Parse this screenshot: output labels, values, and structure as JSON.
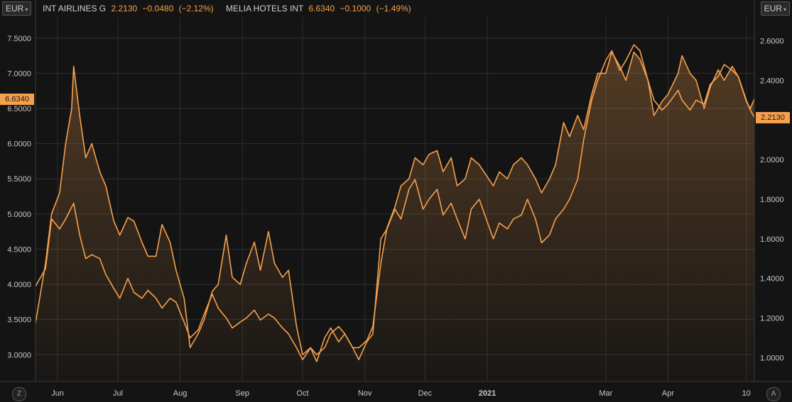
{
  "header": {
    "left_currency": "EUR",
    "right_currency": "EUR",
    "legend": [
      {
        "name": "INT AIRLINES G",
        "value": "2.2130",
        "change": "−0.0480",
        "pct": "(−2.12%)"
      },
      {
        "name": "MELIA HOTELS INT",
        "value": "6.6340",
        "change": "−0.1000",
        "pct": "(−1.49%)"
      }
    ]
  },
  "badges": {
    "left": "6.6340",
    "right": "2.2130"
  },
  "controls": {
    "left_corner": "Z",
    "right_corner": "A"
  },
  "colors": {
    "background": "#141414",
    "grid": "#2e2e2e",
    "line": "#f6a04d",
    "axis_text": "#c8c8c8"
  },
  "chart_data": {
    "type": "line",
    "x_axis": {
      "type": "date",
      "range": [
        "2020-05-21",
        "2021-05-14"
      ],
      "ticks": [
        {
          "date": "2020-06-01",
          "label": "Jun"
        },
        {
          "date": "2020-07-01",
          "label": "Jul"
        },
        {
          "date": "2020-08-01",
          "label": "Aug"
        },
        {
          "date": "2020-09-01",
          "label": "Sep"
        },
        {
          "date": "2020-10-01",
          "label": "Oct"
        },
        {
          "date": "2020-11-01",
          "label": "Nov"
        },
        {
          "date": "2020-12-01",
          "label": "Dec"
        },
        {
          "date": "2021-01-01",
          "label": "2021"
        },
        {
          "date": "2021-03-01",
          "label": "Mar"
        },
        {
          "date": "2021-04-01",
          "label": "Apr"
        },
        {
          "date": "2021-05-10",
          "label": "10"
        }
      ]
    },
    "y_left": {
      "ylim": [
        2.62,
        7.8
      ],
      "ticks": [
        "3.0000",
        "3.5000",
        "4.0000",
        "4.5000",
        "5.0000",
        "5.5000",
        "6.0000",
        "6.5000",
        "7.0000",
        "7.5000"
      ]
    },
    "y_right": {
      "ylim": [
        0.88,
        2.72
      ],
      "ticks": [
        "1.0000",
        "1.2000",
        "1.4000",
        "1.6000",
        "1.8000",
        "2.0000",
        "2.2000",
        "2.4000",
        "2.6000"
      ]
    },
    "grid": true,
    "series": [
      {
        "name": "MELIA HOTELS INT",
        "axis": "left",
        "filled": true,
        "points": [
          [
            "2020-05-21",
            3.45
          ],
          [
            "2020-05-26",
            4.3
          ],
          [
            "2020-05-29",
            5.0
          ],
          [
            "2020-06-02",
            5.3
          ],
          [
            "2020-06-05",
            6.0
          ],
          [
            "2020-06-08",
            6.5
          ],
          [
            "2020-06-09",
            7.1
          ],
          [
            "2020-06-12",
            6.4
          ],
          [
            "2020-06-15",
            5.8
          ],
          [
            "2020-06-18",
            6.0
          ],
          [
            "2020-06-22",
            5.6
          ],
          [
            "2020-06-25",
            5.4
          ],
          [
            "2020-06-29",
            4.9
          ],
          [
            "2020-07-02",
            4.7
          ],
          [
            "2020-07-06",
            4.95
          ],
          [
            "2020-07-09",
            4.9
          ],
          [
            "2020-07-13",
            4.6
          ],
          [
            "2020-07-16",
            4.4
          ],
          [
            "2020-07-20",
            4.4
          ],
          [
            "2020-07-23",
            4.85
          ],
          [
            "2020-07-27",
            4.6
          ],
          [
            "2020-07-30",
            4.2
          ],
          [
            "2020-08-03",
            3.8
          ],
          [
            "2020-08-06",
            3.1
          ],
          [
            "2020-08-10",
            3.3
          ],
          [
            "2020-08-13",
            3.5
          ],
          [
            "2020-08-17",
            3.9
          ],
          [
            "2020-08-20",
            4.0
          ],
          [
            "2020-08-24",
            4.7
          ],
          [
            "2020-08-27",
            4.1
          ],
          [
            "2020-08-31",
            4.0
          ],
          [
            "2020-09-03",
            4.3
          ],
          [
            "2020-09-07",
            4.6
          ],
          [
            "2020-09-10",
            4.2
          ],
          [
            "2020-09-14",
            4.75
          ],
          [
            "2020-09-17",
            4.3
          ],
          [
            "2020-09-21",
            4.1
          ],
          [
            "2020-09-24",
            4.2
          ],
          [
            "2020-09-28",
            3.4
          ],
          [
            "2020-10-01",
            3.0
          ],
          [
            "2020-10-05",
            3.1
          ],
          [
            "2020-10-08",
            3.0
          ],
          [
            "2020-10-12",
            3.1
          ],
          [
            "2020-10-15",
            3.3
          ],
          [
            "2020-10-19",
            3.4
          ],
          [
            "2020-10-22",
            3.3
          ],
          [
            "2020-10-26",
            3.1
          ],
          [
            "2020-10-29",
            3.1
          ],
          [
            "2020-11-02",
            3.2
          ],
          [
            "2020-11-05",
            3.4
          ],
          [
            "2020-11-09",
            4.3
          ],
          [
            "2020-11-12",
            4.8
          ],
          [
            "2020-11-16",
            5.1
          ],
          [
            "2020-11-19",
            5.4
          ],
          [
            "2020-11-23",
            5.5
          ],
          [
            "2020-11-26",
            5.8
          ],
          [
            "2020-11-30",
            5.7
          ],
          [
            "2020-12-03",
            5.85
          ],
          [
            "2020-12-07",
            5.9
          ],
          [
            "2020-12-10",
            5.6
          ],
          [
            "2020-12-14",
            5.8
          ],
          [
            "2020-12-17",
            5.4
          ],
          [
            "2020-12-21",
            5.5
          ],
          [
            "2020-12-24",
            5.8
          ],
          [
            "2020-12-28",
            5.7
          ],
          [
            "2021-01-04",
            5.4
          ],
          [
            "2021-01-07",
            5.6
          ],
          [
            "2021-01-11",
            5.5
          ],
          [
            "2021-01-14",
            5.7
          ],
          [
            "2021-01-18",
            5.8
          ],
          [
            "2021-01-21",
            5.7
          ],
          [
            "2021-01-25",
            5.5
          ],
          [
            "2021-01-28",
            5.3
          ],
          [
            "2021-02-01",
            5.5
          ],
          [
            "2021-02-04",
            5.7
          ],
          [
            "2021-02-08",
            6.3
          ],
          [
            "2021-02-11",
            6.1
          ],
          [
            "2021-02-15",
            6.4
          ],
          [
            "2021-02-18",
            6.2
          ],
          [
            "2021-02-22",
            6.7
          ],
          [
            "2021-02-25",
            7.0
          ],
          [
            "2021-03-01",
            7.0
          ],
          [
            "2021-03-04",
            7.3
          ],
          [
            "2021-03-08",
            7.1
          ],
          [
            "2021-03-11",
            6.9
          ],
          [
            "2021-03-15",
            7.3
          ],
          [
            "2021-03-18",
            7.2
          ],
          [
            "2021-03-22",
            6.9
          ],
          [
            "2021-03-25",
            6.4
          ],
          [
            "2021-03-29",
            6.6
          ],
          [
            "2021-04-01",
            6.7
          ],
          [
            "2021-04-06",
            7.0
          ],
          [
            "2021-04-08",
            7.25
          ],
          [
            "2021-04-12",
            7.0
          ],
          [
            "2021-04-15",
            6.9
          ],
          [
            "2021-04-19",
            6.5
          ],
          [
            "2021-04-22",
            6.8
          ],
          [
            "2021-04-26",
            7.05
          ],
          [
            "2021-04-29",
            6.9
          ],
          [
            "2021-05-03",
            7.1
          ],
          [
            "2021-05-06",
            6.95
          ],
          [
            "2021-05-10",
            6.6
          ],
          [
            "2021-05-12",
            6.5
          ],
          [
            "2021-05-14",
            6.634
          ]
        ]
      },
      {
        "name": "INT AIRLINES G",
        "axis": "right",
        "filled": false,
        "points": [
          [
            "2020-05-21",
            1.36
          ],
          [
            "2020-05-26",
            1.45
          ],
          [
            "2020-05-29",
            1.7
          ],
          [
            "2020-06-02",
            1.65
          ],
          [
            "2020-06-05",
            1.7
          ],
          [
            "2020-06-09",
            1.78
          ],
          [
            "2020-06-12",
            1.62
          ],
          [
            "2020-06-15",
            1.5
          ],
          [
            "2020-06-18",
            1.52
          ],
          [
            "2020-06-22",
            1.5
          ],
          [
            "2020-06-25",
            1.42
          ],
          [
            "2020-06-29",
            1.35
          ],
          [
            "2020-07-02",
            1.3
          ],
          [
            "2020-07-06",
            1.4
          ],
          [
            "2020-07-09",
            1.33
          ],
          [
            "2020-07-13",
            1.3
          ],
          [
            "2020-07-16",
            1.34
          ],
          [
            "2020-07-20",
            1.3
          ],
          [
            "2020-07-23",
            1.25
          ],
          [
            "2020-07-27",
            1.3
          ],
          [
            "2020-07-30",
            1.28
          ],
          [
            "2020-08-03",
            1.18
          ],
          [
            "2020-08-06",
            1.1
          ],
          [
            "2020-08-10",
            1.14
          ],
          [
            "2020-08-13",
            1.22
          ],
          [
            "2020-08-17",
            1.32
          ],
          [
            "2020-08-20",
            1.25
          ],
          [
            "2020-08-24",
            1.2
          ],
          [
            "2020-08-27",
            1.15
          ],
          [
            "2020-08-31",
            1.18
          ],
          [
            "2020-09-03",
            1.2
          ],
          [
            "2020-09-07",
            1.24
          ],
          [
            "2020-09-10",
            1.19
          ],
          [
            "2020-09-14",
            1.22
          ],
          [
            "2020-09-17",
            1.2
          ],
          [
            "2020-09-21",
            1.15
          ],
          [
            "2020-09-24",
            1.12
          ],
          [
            "2020-09-28",
            1.05
          ],
          [
            "2020-10-01",
            0.99
          ],
          [
            "2020-10-05",
            1.05
          ],
          [
            "2020-10-08",
            0.98
          ],
          [
            "2020-10-12",
            1.1
          ],
          [
            "2020-10-15",
            1.15
          ],
          [
            "2020-10-19",
            1.08
          ],
          [
            "2020-10-22",
            1.12
          ],
          [
            "2020-10-26",
            1.05
          ],
          [
            "2020-10-29",
            0.99
          ],
          [
            "2020-11-02",
            1.08
          ],
          [
            "2020-11-05",
            1.12
          ],
          [
            "2020-11-09",
            1.6
          ],
          [
            "2020-11-12",
            1.65
          ],
          [
            "2020-11-16",
            1.75
          ],
          [
            "2020-11-19",
            1.7
          ],
          [
            "2020-11-23",
            1.85
          ],
          [
            "2020-11-26",
            1.9
          ],
          [
            "2020-11-30",
            1.75
          ],
          [
            "2020-12-03",
            1.8
          ],
          [
            "2020-12-07",
            1.85
          ],
          [
            "2020-12-10",
            1.72
          ],
          [
            "2020-12-14",
            1.78
          ],
          [
            "2020-12-17",
            1.7
          ],
          [
            "2020-12-21",
            1.6
          ],
          [
            "2020-12-24",
            1.75
          ],
          [
            "2020-12-28",
            1.8
          ],
          [
            "2021-01-04",
            1.6
          ],
          [
            "2021-01-07",
            1.68
          ],
          [
            "2021-01-11",
            1.65
          ],
          [
            "2021-01-14",
            1.7
          ],
          [
            "2021-01-18",
            1.72
          ],
          [
            "2021-01-21",
            1.8
          ],
          [
            "2021-01-25",
            1.7
          ],
          [
            "2021-01-28",
            1.58
          ],
          [
            "2021-02-01",
            1.62
          ],
          [
            "2021-02-04",
            1.7
          ],
          [
            "2021-02-08",
            1.75
          ],
          [
            "2021-02-11",
            1.8
          ],
          [
            "2021-02-15",
            1.9
          ],
          [
            "2021-02-18",
            2.1
          ],
          [
            "2021-02-22",
            2.3
          ],
          [
            "2021-02-25",
            2.4
          ],
          [
            "2021-03-01",
            2.5
          ],
          [
            "2021-03-04",
            2.55
          ],
          [
            "2021-03-08",
            2.45
          ],
          [
            "2021-03-11",
            2.5
          ],
          [
            "2021-03-15",
            2.58
          ],
          [
            "2021-03-18",
            2.55
          ],
          [
            "2021-03-22",
            2.4
          ],
          [
            "2021-03-25",
            2.3
          ],
          [
            "2021-03-29",
            2.25
          ],
          [
            "2021-04-01",
            2.28
          ],
          [
            "2021-04-06",
            2.35
          ],
          [
            "2021-04-08",
            2.3
          ],
          [
            "2021-04-12",
            2.25
          ],
          [
            "2021-04-15",
            2.3
          ],
          [
            "2021-04-19",
            2.28
          ],
          [
            "2021-04-22",
            2.38
          ],
          [
            "2021-04-26",
            2.42
          ],
          [
            "2021-04-29",
            2.48
          ],
          [
            "2021-05-03",
            2.45
          ],
          [
            "2021-05-06",
            2.42
          ],
          [
            "2021-05-10",
            2.3
          ],
          [
            "2021-05-12",
            2.25
          ],
          [
            "2021-05-14",
            2.213
          ]
        ]
      }
    ]
  }
}
